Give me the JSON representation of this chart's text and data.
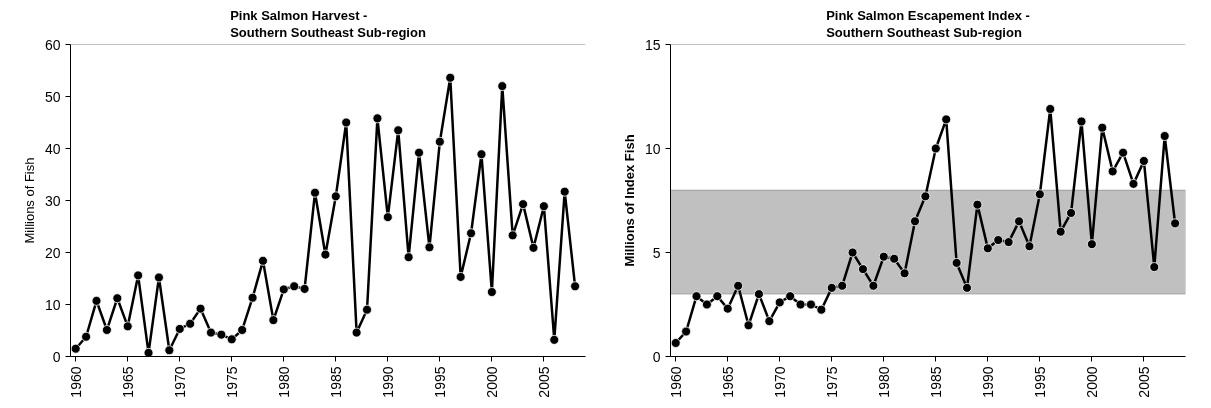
{
  "chart_data": [
    {
      "type": "line",
      "title": "Pink Salmon Harvest -\nSouthern Southeast Sub-region",
      "ylabel": "Millions of Fish",
      "x": [
        1960,
        1961,
        1962,
        1963,
        1964,
        1965,
        1966,
        1967,
        1968,
        1969,
        1970,
        1971,
        1972,
        1973,
        1974,
        1975,
        1976,
        1977,
        1978,
        1979,
        1980,
        1981,
        1982,
        1983,
        1984,
        1985,
        1986,
        1987,
        1988,
        1989,
        1990,
        1991,
        1992,
        1993,
        1994,
        1995,
        1996,
        1997,
        1998,
        1999,
        2000,
        2001,
        2002,
        2003,
        2004,
        2005,
        2006,
        2007,
        2008
      ],
      "series": [
        {
          "color": "#000000",
          "values": [
            1.5,
            3.8,
            10.7,
            5.1,
            11.2,
            5.8,
            15.6,
            0.7,
            15.2,
            1.2,
            5.3,
            6.3,
            9.2,
            4.6,
            4.2,
            3.3,
            5.1,
            11.3,
            18.4,
            7.0,
            12.9,
            13.5,
            13.0,
            31.5,
            19.6,
            30.8,
            45.0,
            4.6,
            9.0,
            45.8,
            26.8,
            43.5,
            19.1,
            39.2,
            21.0,
            41.3,
            53.6,
            15.3,
            23.7,
            38.9,
            12.4,
            52.0,
            23.3,
            29.3,
            20.9,
            28.9,
            3.2,
            31.7,
            13.5
          ]
        }
      ],
      "xlim": [
        1959.5,
        2009
      ],
      "xticks": [
        1960,
        1965,
        1970,
        1975,
        1980,
        1985,
        1990,
        1995,
        2000,
        2005
      ],
      "ylim": [
        0,
        60
      ],
      "yticks": [
        0,
        10,
        20,
        30,
        40,
        50,
        60
      ],
      "grid": false,
      "marker": "circle",
      "line_style": "solid"
    },
    {
      "type": "line",
      "title": "Pink Salmon Escapement Index -\nSouthern Southeast Sub-region",
      "ylabel": "Millions of Index Fish",
      "x": [
        1960,
        1961,
        1962,
        1963,
        1964,
        1965,
        1966,
        1967,
        1968,
        1969,
        1970,
        1971,
        1972,
        1973,
        1974,
        1975,
        1976,
        1977,
        1978,
        1979,
        1980,
        1981,
        1982,
        1983,
        1984,
        1985,
        1986,
        1987,
        1988,
        1989,
        1990,
        1991,
        1992,
        1993,
        1994,
        1995,
        1996,
        1997,
        1998,
        1999,
        2000,
        2001,
        2002,
        2003,
        2004,
        2005,
        2006,
        2007,
        2008
      ],
      "series": [
        {
          "color": "#000000",
          "values": [
            0.65,
            1.2,
            2.9,
            2.5,
            2.9,
            2.3,
            3.4,
            1.5,
            3.0,
            1.7,
            2.6,
            2.9,
            2.5,
            2.5,
            2.25,
            3.3,
            3.4,
            5.0,
            4.2,
            3.4,
            4.8,
            4.7,
            4.0,
            6.5,
            7.7,
            10.0,
            11.4,
            4.5,
            3.3,
            7.3,
            5.2,
            5.6,
            5.5,
            6.5,
            5.3,
            7.8,
            11.9,
            6.0,
            6.9,
            11.3,
            5.4,
            11.0,
            8.9,
            9.8,
            8.3,
            9.4,
            4.3,
            10.6,
            6.4
          ]
        }
      ],
      "bands": [
        {
          "axis": "y",
          "from": 3,
          "to": 8,
          "color": "#c0c0c0"
        }
      ],
      "xlim": [
        1959.5,
        2009
      ],
      "xticks": [
        1960,
        1965,
        1970,
        1975,
        1980,
        1985,
        1990,
        1995,
        2000,
        2005
      ],
      "ylim": [
        0,
        15
      ],
      "yticks": [
        0,
        5,
        10,
        15
      ],
      "grid": false,
      "marker": "circle",
      "line_style": "solid"
    }
  ]
}
